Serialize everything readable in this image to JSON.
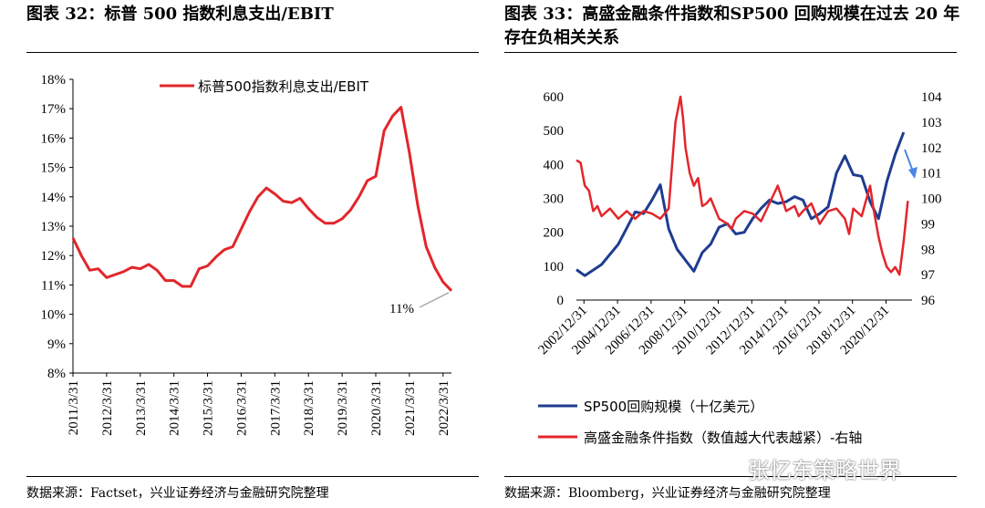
{
  "left_panel": {
    "title": "图表 32：标普 500 指数利息支出/EBIT",
    "source": "数据来源：Factset，兴业证券经济与金融研究院整理"
  },
  "right_panel": {
    "title": "图表 33：高盛金融条件指数和SP500 回购规模在过去 20 年存在负相关关系",
    "source": "数据来源：Bloomberg，兴业证券经济与金融研究院整理"
  },
  "watermark": "张忆东策略世界",
  "chart_data": [
    {
      "type": "line",
      "title": "标普500指数利息支出/EBIT",
      "legend": "标普500指数利息支出/EBIT",
      "annotation": "11%",
      "color": "#e2262b",
      "ylim": [
        8,
        18
      ],
      "y_ticks": [
        "8%",
        "9%",
        "10%",
        "11%",
        "12%",
        "13%",
        "14%",
        "15%",
        "16%",
        "17%",
        "18%"
      ],
      "x_ticks": [
        "2011/3/31",
        "2012/3/31",
        "2013/3/31",
        "2014/3/31",
        "2015/3/31",
        "2016/3/31",
        "2017/3/31",
        "2018/3/31",
        "2019/3/31",
        "2020/3/31",
        "2021/3/31",
        "2022/3/31"
      ],
      "x": [
        2011.0,
        2011.25,
        2011.5,
        2011.75,
        2012.0,
        2012.25,
        2012.5,
        2012.75,
        2013.0,
        2013.25,
        2013.5,
        2013.75,
        2014.0,
        2014.25,
        2014.5,
        2014.75,
        2015.0,
        2015.25,
        2015.5,
        2015.75,
        2016.0,
        2016.25,
        2016.5,
        2016.75,
        2017.0,
        2017.25,
        2017.5,
        2017.75,
        2018.0,
        2018.25,
        2018.5,
        2018.75,
        2019.0,
        2019.25,
        2019.5,
        2019.75,
        2020.0,
        2020.25,
        2020.5,
        2020.75,
        2021.0,
        2021.25,
        2021.5,
        2021.75,
        2022.0,
        2022.25
      ],
      "values": [
        12.6,
        12.0,
        11.5,
        11.55,
        11.25,
        11.35,
        11.45,
        11.6,
        11.55,
        11.7,
        11.5,
        11.15,
        11.15,
        10.95,
        10.95,
        11.55,
        11.65,
        11.95,
        12.2,
        12.3,
        12.9,
        13.5,
        14.0,
        14.3,
        14.1,
        13.85,
        13.8,
        13.95,
        13.6,
        13.3,
        13.1,
        13.1,
        13.25,
        13.55,
        14.0,
        14.55,
        14.7,
        16.25,
        16.75,
        17.05,
        15.5,
        13.7,
        12.3,
        11.6,
        11.1,
        10.8
      ]
    },
    {
      "type": "line",
      "title": "",
      "left_ylim": [
        0,
        600
      ],
      "right_ylim": [
        96,
        104
      ],
      "left_ticks": [
        "0",
        "100",
        "200",
        "300",
        "400",
        "500",
        "600"
      ],
      "right_ticks": [
        "96",
        "97",
        "98",
        "99",
        "100",
        "101",
        "102",
        "103",
        "104"
      ],
      "x_ticks": [
        "2002/12/31",
        "2004/12/31",
        "2006/12/31",
        "2008/12/31",
        "2010/12/31",
        "2012/12/31",
        "2014/12/31",
        "2016/12/31",
        "2018/12/31",
        "2020/12/31"
      ],
      "series": [
        {
          "name": "SP500回购规模（十亿美元）",
          "axis": "left",
          "color": "#1f3c8f",
          "x": [
            2002.5,
            2003.0,
            2004.0,
            2005.0,
            2006.0,
            2006.5,
            2007.0,
            2007.5,
            2008.0,
            2008.5,
            2009.5,
            2010.0,
            2010.5,
            2011.0,
            2011.5,
            2012.0,
            2012.5,
            2013.0,
            2013.5,
            2014.0,
            2014.5,
            2015.0,
            2015.5,
            2016.0,
            2016.5,
            2017.0,
            2017.5,
            2018.0,
            2018.5,
            2019.0,
            2019.5,
            2020.0,
            2020.5,
            2021.0,
            2021.5,
            2022.0
          ],
          "values": [
            90,
            72,
            105,
            165,
            260,
            255,
            295,
            340,
            210,
            150,
            85,
            140,
            165,
            215,
            225,
            195,
            200,
            240,
            270,
            295,
            285,
            290,
            305,
            295,
            240,
            255,
            275,
            375,
            425,
            370,
            365,
            290,
            240,
            350,
            430,
            495
          ]
        },
        {
          "name": "高盛金融条件指数（数值越大代表越紧）-右轴",
          "axis": "right",
          "color": "#e2262b",
          "x": [
            2002.5,
            2002.75,
            2003.0,
            2003.25,
            2003.5,
            2003.75,
            2004.0,
            2004.5,
            2005.0,
            2005.5,
            2006.0,
            2006.5,
            2007.0,
            2007.5,
            2008.0,
            2008.4,
            2008.7,
            2008.85,
            2009.0,
            2009.25,
            2009.5,
            2009.75,
            2010.0,
            2010.25,
            2010.5,
            2010.75,
            2011.0,
            2011.5,
            2011.75,
            2012.0,
            2012.5,
            2013.0,
            2013.5,
            2014.0,
            2014.5,
            2015.0,
            2015.5,
            2015.75,
            2016.0,
            2016.5,
            2017.0,
            2017.5,
            2018.0,
            2018.5,
            2018.75,
            2019.0,
            2019.5,
            2020.0,
            2020.2,
            2020.5,
            2020.75,
            2021.0,
            2021.25,
            2021.5,
            2021.75,
            2022.0,
            2022.25
          ],
          "values": [
            101.5,
            101.4,
            100.5,
            100.3,
            99.5,
            99.7,
            99.3,
            99.6,
            99.2,
            99.5,
            99.2,
            99.5,
            99.4,
            99.2,
            99.6,
            103.0,
            104.0,
            103.2,
            102.0,
            101.0,
            100.5,
            100.8,
            99.7,
            99.8,
            100.0,
            99.6,
            99.2,
            99.0,
            98.8,
            99.2,
            99.5,
            99.4,
            99.1,
            99.8,
            100.5,
            99.5,
            99.7,
            99.3,
            99.5,
            99.8,
            99.0,
            99.5,
            99.6,
            99.2,
            98.6,
            99.6,
            99.3,
            100.5,
            99.6,
            98.5,
            97.8,
            97.3,
            97.1,
            97.3,
            97.0,
            98.3,
            99.9
          ]
        }
      ]
    }
  ]
}
